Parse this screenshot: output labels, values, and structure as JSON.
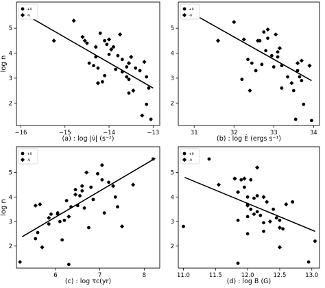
{
  "chart_data": [
    {
      "type": "scatter",
      "ylabel": "log n",
      "caption": "(a) : log |ν̇| (s⁻²)",
      "xlim": [
        -16.1,
        -12.85
      ],
      "ylim": [
        1.1,
        6.05
      ],
      "xticks": [
        -16,
        -15,
        -14,
        -13
      ],
      "xtick_labels": [
        "−16",
        "−15",
        "−14",
        "−13"
      ],
      "yticks": [
        2,
        3,
        4,
        5
      ],
      "ytick_labels": [
        "2",
        "3",
        "4",
        "5"
      ],
      "legend": [
        "+ν̈",
        "-ν̈"
      ],
      "legend_position": "top-left",
      "series": [
        {
          "name": "+ν̈",
          "marker": "circle",
          "points": [
            [
              -14.2,
              4.8
            ],
            [
              -14.5,
              4.4
            ],
            [
              -14.1,
              4.5
            ],
            [
              -14.05,
              4.35
            ],
            [
              -13.9,
              4.25
            ],
            [
              -14.0,
              3.95
            ],
            [
              -13.8,
              3.9
            ],
            [
              -13.7,
              3.75
            ],
            [
              -14.3,
              3.85
            ],
            [
              -14.45,
              3.6
            ],
            [
              -14.35,
              3.5
            ],
            [
              -14.25,
              3.4
            ],
            [
              -13.85,
              3.35
            ],
            [
              -13.7,
              3.25
            ],
            [
              -13.6,
              3.05
            ],
            [
              -13.55,
              2.95
            ],
            [
              -14.1,
              3.1
            ],
            [
              -14.15,
              2.85
            ],
            [
              -13.6,
              3.45
            ],
            [
              -13.4,
              3.4
            ],
            [
              -13.3,
              3.3
            ],
            [
              -13.15,
              3.05
            ],
            [
              -13.55,
              2.4
            ],
            [
              -13.1,
              2.6
            ],
            [
              -13.15,
              1.95
            ],
            [
              -13.05,
              1.35
            ]
          ]
        },
        {
          "name": "-ν̈",
          "marker": "diamond",
          "points": [
            [
              -15.25,
              4.5
            ],
            [
              -14.8,
              5.3
            ],
            [
              -14.6,
              4.65
            ],
            [
              -14.55,
              4.5
            ],
            [
              -14.3,
              4.25
            ],
            [
              -14.0,
              4.55
            ],
            [
              -13.95,
              4.15
            ],
            [
              -13.75,
              4.75
            ],
            [
              -13.5,
              3.85
            ],
            [
              -13.55,
              3.6
            ],
            [
              -13.2,
              3.65
            ],
            [
              -14.25,
              2.8
            ],
            [
              -13.45,
              2.5
            ],
            [
              -13.25,
              1.5
            ]
          ]
        }
      ],
      "fit_line": {
        "x": [
          -15.95,
          -13.0
        ],
        "y": [
          5.6,
          2.6
        ]
      }
    },
    {
      "type": "scatter",
      "ylabel": "",
      "caption": "(b) : log Ė (ergs s⁻¹)",
      "xlim": [
        30.6,
        34.15
      ],
      "ylim": [
        1.1,
        6.05
      ],
      "xticks": [
        31,
        32,
        33,
        34
      ],
      "xtick_labels": [
        "31",
        "32",
        "33",
        "34"
      ],
      "yticks": [
        2,
        3,
        4,
        5
      ],
      "ytick_labels": [
        "2",
        "3",
        "4",
        "5"
      ],
      "legend": [
        "+ν̈",
        "-ν̈"
      ],
      "legend_position": "top-left",
      "series": [
        {
          "name": "+ν̈",
          "marker": "circle",
          "points": [
            [
              32.75,
              4.85
            ],
            [
              32.65,
              4.5
            ],
            [
              32.85,
              4.6
            ],
            [
              32.8,
              4.1
            ],
            [
              33.1,
              4.05
            ],
            [
              32.95,
              3.9
            ],
            [
              33.1,
              3.85
            ],
            [
              33.2,
              3.5
            ],
            [
              33.0,
              3.45
            ],
            [
              32.7,
              3.55
            ],
            [
              32.55,
              3.3
            ],
            [
              32.45,
              3.6
            ],
            [
              32.2,
              2.95
            ],
            [
              32.35,
              3.75
            ],
            [
              33.35,
              3.05
            ],
            [
              33.6,
              3.3
            ],
            [
              33.65,
              3.05
            ],
            [
              33.7,
              2.9
            ],
            [
              33.5,
              2.5
            ],
            [
              33.2,
              2.6
            ],
            [
              33.75,
              1.95
            ],
            [
              33.55,
              1.35
            ],
            [
              33.95,
              1.3
            ]
          ]
        },
        {
          "name": "-ν̈",
          "marker": "diamond",
          "points": [
            [
              32.0,
              5.25
            ],
            [
              31.6,
              4.5
            ],
            [
              32.25,
              4.55
            ],
            [
              32.6,
              4.5
            ],
            [
              32.85,
              4.95
            ],
            [
              33.05,
              4.75
            ],
            [
              33.15,
              4.2
            ],
            [
              33.6,
              3.6
            ],
            [
              33.7,
              3.7
            ],
            [
              33.9,
              3.5
            ],
            [
              32.4,
              2.5
            ],
            [
              33.45,
              2.8
            ]
          ]
        }
      ],
      "fit_line": {
        "x": [
          31.0,
          33.95
        ],
        "y": [
          5.55,
          2.9
        ]
      }
    },
    {
      "type": "scatter",
      "ylabel": "log n",
      "caption": "(c) : log τc(yr)",
      "xlim": [
        5.12,
        8.35
      ],
      "ylim": [
        1.1,
        6.05
      ],
      "xticks": [
        6,
        7,
        8
      ],
      "xtick_labels": [
        "6",
        "7",
        "8"
      ],
      "yticks": [
        2,
        3,
        4,
        5
      ],
      "ytick_labels": [
        "2",
        "3",
        "4",
        "5"
      ],
      "legend": [
        "+ν̈",
        "-ν̈"
      ],
      "legend_position": "top-left",
      "series": [
        {
          "name": "+ν̈",
          "marker": "circle",
          "points": [
            [
              5.2,
              1.35
            ],
            [
              5.55,
              2.3
            ],
            [
              5.6,
              2.55
            ],
            [
              5.9,
              3.3
            ],
            [
              5.85,
              2.9
            ],
            [
              6.05,
              3.35
            ],
            [
              6.1,
              3.0
            ],
            [
              6.2,
              3.05
            ],
            [
              6.25,
              3.85
            ],
            [
              6.35,
              3.6
            ],
            [
              6.5,
              3.65
            ],
            [
              6.55,
              4.05
            ],
            [
              6.45,
              4.3
            ],
            [
              6.6,
              4.25
            ],
            [
              6.8,
              4.4
            ],
            [
              6.85,
              3.9
            ],
            [
              6.95,
              4.95
            ],
            [
              7.05,
              4.7
            ],
            [
              7.2,
              4.6
            ],
            [
              6.65,
              3.55
            ],
            [
              7.1,
              3.35
            ],
            [
              6.75,
              2.75
            ],
            [
              6.15,
              2.25
            ],
            [
              6.3,
              1.25
            ],
            [
              7.35,
              4.0
            ],
            [
              7.4,
              3.6
            ],
            [
              8.2,
              5.55
            ]
          ]
        },
        {
          "name": "-ν̈",
          "marker": "diamond",
          "points": [
            [
              5.55,
              3.65
            ],
            [
              5.65,
              3.7
            ],
            [
              5.7,
              1.95
            ],
            [
              5.85,
              3.15
            ],
            [
              6.05,
              3.3
            ],
            [
              6.3,
              3.2
            ],
            [
              6.45,
              4.1
            ],
            [
              6.6,
              4.45
            ],
            [
              6.7,
              5.0
            ],
            [
              7.05,
              5.3
            ],
            [
              7.3,
              4.45
            ],
            [
              7.5,
              2.8
            ],
            [
              7.75,
              4.5
            ]
          ]
        }
      ],
      "fit_line": {
        "x": [
          5.25,
          8.25
        ],
        "y": [
          2.38,
          5.58
        ]
      }
    },
    {
      "type": "scatter",
      "ylabel": "",
      "caption": "(d) : log B (G)",
      "xlim": [
        10.92,
        13.12
      ],
      "ylim": [
        1.1,
        6.05
      ],
      "xticks": [
        11.0,
        11.5,
        12.0,
        12.5,
        13.0
      ],
      "xtick_labels": [
        "11.0",
        "11.5",
        "12.0",
        "12.5",
        "13.0"
      ],
      "yticks": [
        2,
        3,
        4,
        5
      ],
      "ytick_labels": [
        "2",
        "3",
        "4",
        "5"
      ],
      "legend": [
        "+ν̈",
        "-ν̈"
      ],
      "legend_position": "top-left",
      "series": [
        {
          "name": "+ν̈",
          "marker": "circle",
          "points": [
            [
              11.0,
              2.8
            ],
            [
              11.4,
              5.55
            ],
            [
              11.8,
              4.75
            ],
            [
              11.9,
              4.7
            ],
            [
              11.95,
              4.4
            ],
            [
              12.05,
              4.7
            ],
            [
              12.0,
              4.0
            ],
            [
              12.1,
              3.95
            ],
            [
              12.15,
              4.05
            ],
            [
              12.0,
              3.7
            ],
            [
              12.05,
              3.5
            ],
            [
              12.15,
              3.4
            ],
            [
              11.85,
              3.05
            ],
            [
              12.0,
              3.2
            ],
            [
              12.2,
              3.25
            ],
            [
              12.25,
              2.95
            ],
            [
              12.0,
              2.5
            ],
            [
              12.25,
              2.6
            ],
            [
              12.45,
              3.15
            ],
            [
              12.4,
              3.5
            ],
            [
              12.5,
              3.05
            ],
            [
              12.55,
              2.7
            ],
            [
              12.7,
              3.8
            ],
            [
              11.85,
              1.3
            ],
            [
              12.95,
              1.35
            ],
            [
              13.05,
              2.2
            ]
          ]
        },
        {
          "name": "-ν̈",
          "marker": "diamond",
          "points": [
            [
              11.55,
              4.5
            ],
            [
              11.8,
              4.75
            ],
            [
              11.85,
              4.2
            ],
            [
              11.95,
              4.75
            ],
            [
              12.0,
              3.65
            ],
            [
              12.1,
              3.3
            ],
            [
              12.15,
              5.2
            ],
            [
              12.3,
              3.8
            ],
            [
              12.35,
              3.0
            ],
            [
              12.5,
              2.75
            ],
            [
              12.6,
              3.7
            ],
            [
              12.5,
              1.95
            ],
            [
              12.25,
              4.0
            ]
          ]
        }
      ],
      "fit_line": {
        "x": [
          11.02,
          13.05
        ],
        "y": [
          4.8,
          2.6
        ]
      }
    }
  ]
}
